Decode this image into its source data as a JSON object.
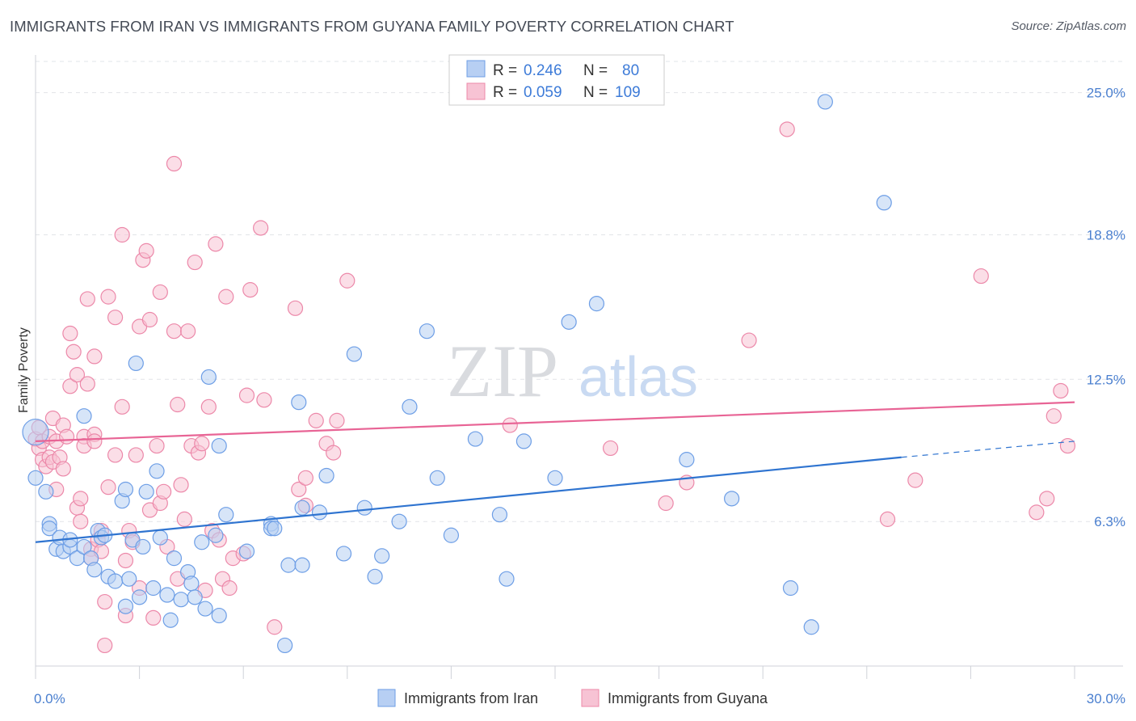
{
  "chart_data": {
    "type": "scatter",
    "title": "IMMIGRANTS FROM IRAN VS IMMIGRANTS FROM GUYANA FAMILY POVERTY CORRELATION CHART",
    "source": "Source: ZipAtlas.com",
    "ylabel": "Family Poverty",
    "watermark": {
      "zip": "ZIP",
      "atlas": "atlas"
    },
    "xlim": [
      0,
      30
    ],
    "ylim": [
      0,
      26.5
    ],
    "x_ticks": [
      {
        "value": 0,
        "label": "0.0%"
      },
      {
        "value": 30,
        "label": "30.0%"
      }
    ],
    "x_minor_ticks": [
      0,
      3,
      6,
      9,
      12,
      15,
      18,
      21,
      24,
      27,
      30
    ],
    "y_ticks": [
      {
        "value": 6.3,
        "label": "6.3%"
      },
      {
        "value": 12.5,
        "label": "12.5%"
      },
      {
        "value": 18.8,
        "label": "18.8%"
      },
      {
        "value": 25.0,
        "label": "25.0%"
      }
    ],
    "legend": [
      {
        "r_label": "R =",
        "r": "0.246",
        "n_label": "N =",
        "n": "80"
      },
      {
        "r_label": "R =",
        "r": "0.059",
        "n_label": "N =",
        "n": "109"
      }
    ],
    "series": [
      {
        "name": "Immigrants from Iran",
        "color": "#6d9ee6",
        "fill": "#b7cff3",
        "trend": {
          "x0": 0,
          "y0": 5.4,
          "x1": 25.0,
          "y1": 9.1,
          "dash_to_x": 30,
          "dash_to_y": 9.8,
          "color": "#2f74d0"
        },
        "points": [
          [
            0.0,
            10.2
          ],
          [
            0.0,
            8.2
          ],
          [
            0.3,
            7.6
          ],
          [
            0.4,
            6.2
          ],
          [
            0.4,
            6.0
          ],
          [
            0.6,
            5.1
          ],
          [
            0.7,
            5.6
          ],
          [
            0.8,
            5.0
          ],
          [
            1.0,
            5.2
          ],
          [
            1.0,
            5.5
          ],
          [
            1.2,
            4.7
          ],
          [
            1.4,
            10.9
          ],
          [
            1.4,
            5.2
          ],
          [
            1.6,
            4.7
          ],
          [
            1.7,
            4.2
          ],
          [
            1.8,
            5.9
          ],
          [
            1.9,
            5.6
          ],
          [
            2.0,
            5.7
          ],
          [
            2.1,
            3.9
          ],
          [
            2.3,
            3.7
          ],
          [
            2.5,
            7.2
          ],
          [
            2.6,
            7.7
          ],
          [
            2.6,
            2.6
          ],
          [
            2.7,
            3.8
          ],
          [
            2.8,
            5.5
          ],
          [
            2.9,
            13.2
          ],
          [
            3.0,
            3.0
          ],
          [
            3.1,
            5.2
          ],
          [
            3.2,
            7.6
          ],
          [
            3.4,
            3.4
          ],
          [
            3.5,
            8.5
          ],
          [
            3.6,
            5.6
          ],
          [
            3.8,
            3.1
          ],
          [
            3.9,
            2.0
          ],
          [
            4.0,
            4.7
          ],
          [
            4.2,
            2.9
          ],
          [
            4.4,
            4.1
          ],
          [
            4.5,
            3.6
          ],
          [
            4.6,
            3.0
          ],
          [
            4.8,
            5.4
          ],
          [
            4.9,
            2.5
          ],
          [
            5.0,
            12.6
          ],
          [
            5.2,
            5.7
          ],
          [
            5.3,
            2.2
          ],
          [
            5.3,
            9.6
          ],
          [
            5.5,
            6.6
          ],
          [
            6.1,
            5.0
          ],
          [
            6.8,
            6.2
          ],
          [
            6.8,
            6.0
          ],
          [
            6.9,
            6.0
          ],
          [
            7.2,
            0.9
          ],
          [
            7.3,
            4.4
          ],
          [
            7.6,
            11.5
          ],
          [
            7.7,
            4.4
          ],
          [
            7.7,
            6.9
          ],
          [
            8.2,
            6.7
          ],
          [
            8.4,
            8.3
          ],
          [
            8.9,
            4.9
          ],
          [
            9.2,
            13.6
          ],
          [
            9.5,
            6.9
          ],
          [
            9.8,
            3.9
          ],
          [
            10.0,
            4.8
          ],
          [
            10.5,
            6.3
          ],
          [
            10.8,
            11.3
          ],
          [
            11.3,
            14.6
          ],
          [
            11.6,
            8.2
          ],
          [
            12.0,
            5.7
          ],
          [
            12.7,
            9.9
          ],
          [
            13.4,
            6.6
          ],
          [
            13.6,
            3.8
          ],
          [
            14.1,
            9.8
          ],
          [
            15.0,
            8.2
          ],
          [
            15.4,
            15.0
          ],
          [
            16.2,
            15.8
          ],
          [
            18.8,
            9.0
          ],
          [
            20.1,
            7.3
          ],
          [
            21.8,
            3.4
          ],
          [
            22.4,
            1.7
          ],
          [
            22.8,
            24.6
          ],
          [
            24.5,
            20.2
          ]
        ]
      },
      {
        "name": "Immigrants from Guyana",
        "color": "#ec88a9",
        "fill": "#f7c3d4",
        "trend": {
          "x0": 0,
          "y0": 9.8,
          "x1": 30,
          "y1": 11.5,
          "color": "#e86495"
        },
        "points": [
          [
            0.0,
            9.9
          ],
          [
            0.1,
            10.4
          ],
          [
            0.1,
            9.5
          ],
          [
            0.2,
            9.0
          ],
          [
            0.2,
            9.8
          ],
          [
            0.3,
            8.7
          ],
          [
            0.4,
            10.0
          ],
          [
            0.4,
            9.1
          ],
          [
            0.5,
            10.8
          ],
          [
            0.5,
            8.9
          ],
          [
            0.6,
            9.8
          ],
          [
            0.6,
            7.7
          ],
          [
            0.7,
            9.1
          ],
          [
            0.8,
            10.5
          ],
          [
            0.8,
            8.6
          ],
          [
            0.9,
            10.0
          ],
          [
            1.0,
            14.5
          ],
          [
            1.0,
            12.2
          ],
          [
            1.1,
            13.7
          ],
          [
            1.2,
            12.7
          ],
          [
            1.2,
            6.9
          ],
          [
            1.3,
            6.3
          ],
          [
            1.3,
            7.3
          ],
          [
            1.4,
            10.0
          ],
          [
            1.4,
            9.6
          ],
          [
            1.5,
            16.0
          ],
          [
            1.5,
            12.3
          ],
          [
            1.6,
            5.1
          ],
          [
            1.6,
            4.7
          ],
          [
            1.7,
            10.1
          ],
          [
            1.7,
            9.8
          ],
          [
            1.7,
            13.5
          ],
          [
            1.8,
            5.5
          ],
          [
            1.9,
            5.9
          ],
          [
            1.9,
            5.0
          ],
          [
            2.0,
            2.8
          ],
          [
            2.0,
            0.9
          ],
          [
            2.1,
            7.8
          ],
          [
            2.1,
            16.1
          ],
          [
            2.3,
            9.2
          ],
          [
            2.3,
            15.2
          ],
          [
            2.5,
            11.3
          ],
          [
            2.5,
            18.8
          ],
          [
            2.6,
            2.2
          ],
          [
            2.6,
            4.6
          ],
          [
            2.7,
            5.9
          ],
          [
            2.8,
            5.4
          ],
          [
            2.9,
            9.2
          ],
          [
            3.0,
            14.8
          ],
          [
            3.0,
            3.4
          ],
          [
            3.1,
            17.7
          ],
          [
            3.2,
            18.1
          ],
          [
            3.3,
            6.8
          ],
          [
            3.3,
            15.1
          ],
          [
            3.4,
            2.1
          ],
          [
            3.5,
            9.6
          ],
          [
            3.6,
            16.3
          ],
          [
            3.6,
            7.1
          ],
          [
            3.7,
            7.6
          ],
          [
            3.8,
            5.2
          ],
          [
            4.0,
            21.9
          ],
          [
            4.0,
            14.6
          ],
          [
            4.1,
            11.4
          ],
          [
            4.1,
            3.8
          ],
          [
            4.2,
            7.9
          ],
          [
            4.3,
            6.4
          ],
          [
            4.4,
            14.6
          ],
          [
            4.5,
            9.6
          ],
          [
            4.6,
            17.6
          ],
          [
            4.7,
            9.3
          ],
          [
            4.8,
            9.7
          ],
          [
            4.9,
            3.3
          ],
          [
            5.0,
            11.3
          ],
          [
            5.1,
            5.9
          ],
          [
            5.2,
            18.4
          ],
          [
            5.3,
            5.5
          ],
          [
            5.4,
            3.8
          ],
          [
            5.5,
            16.1
          ],
          [
            5.6,
            3.4
          ],
          [
            5.7,
            4.7
          ],
          [
            6.0,
            4.9
          ],
          [
            6.1,
            11.8
          ],
          [
            6.2,
            16.4
          ],
          [
            6.5,
            19.1
          ],
          [
            6.6,
            11.6
          ],
          [
            6.9,
            1.7
          ],
          [
            7.5,
            15.6
          ],
          [
            7.6,
            7.7
          ],
          [
            7.8,
            8.2
          ],
          [
            7.8,
            7.0
          ],
          [
            8.1,
            10.7
          ],
          [
            8.4,
            9.7
          ],
          [
            8.6,
            9.3
          ],
          [
            8.7,
            10.7
          ],
          [
            9.0,
            16.8
          ],
          [
            13.7,
            10.5
          ],
          [
            16.6,
            9.5
          ],
          [
            18.2,
            7.1
          ],
          [
            18.8,
            8.0
          ],
          [
            20.6,
            14.2
          ],
          [
            21.7,
            23.4
          ],
          [
            24.6,
            6.4
          ],
          [
            25.4,
            8.1
          ],
          [
            27.3,
            17.0
          ],
          [
            28.9,
            6.7
          ],
          [
            29.2,
            7.3
          ],
          [
            29.4,
            10.9
          ],
          [
            29.6,
            12.0
          ],
          [
            29.8,
            9.6
          ]
        ]
      }
    ]
  }
}
